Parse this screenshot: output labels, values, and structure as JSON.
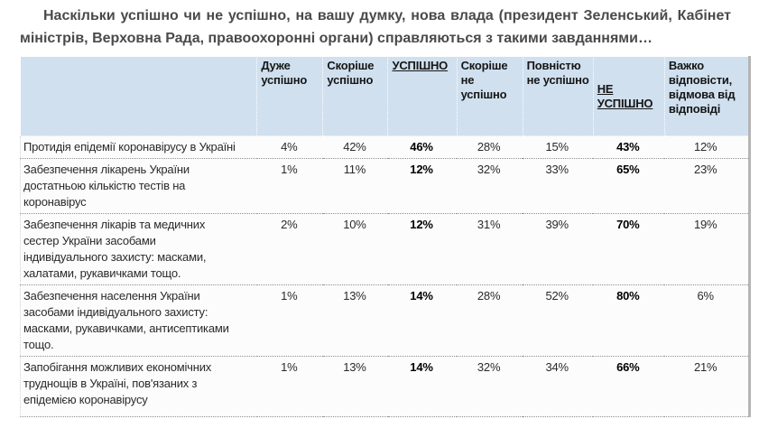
{
  "question": "Наскільки успішно чи не успішно, на вашу думку, нова влада (президент Зеленський, Кабінет міністрів, Верховна Рада, правоохоронні органи) справляються з такими завданнями…",
  "table": {
    "headers": [
      "",
      "Дуже успішно",
      "Скоріше успішно",
      "УСПІШНО",
      "Скоріше не успішно",
      "Повністю не успішно",
      "НЕ УСПІШНО",
      "Важко відповісти, відмова від відповіді"
    ],
    "rows": [
      {
        "label": "Протидія епідемії коронавірусу в Україні",
        "values": [
          "4%",
          "42%",
          "46%",
          "28%",
          "15%",
          "43%",
          "12%"
        ]
      },
      {
        "label": "Забезпечення лікарень України достатньою кількістю тестів на коронавірус",
        "values": [
          "1%",
          "11%",
          "12%",
          "32%",
          "33%",
          "65%",
          "23%"
        ]
      },
      {
        "label": "Забезпечення лікарів та медичних сестер України засобами індивідуального захисту: масками, халатами, рукавичками тощо.",
        "values": [
          "2%",
          "10%",
          "12%",
          "31%",
          "39%",
          "70%",
          "19%"
        ]
      },
      {
        "label": "Забезпечення населення України засобами індивідуального захисту: масками, рукавичками, антисептиками тощо.",
        "values": [
          "1%",
          "13%",
          "14%",
          "28%",
          "52%",
          "80%",
          "6%"
        ]
      },
      {
        "label": "Запобігання можливих економічних труднощів в Україні, пов'язаних з епідемією коронавірусу",
        "values": [
          "1%",
          "13%",
          "14%",
          "32%",
          "34%",
          "66%",
          "21%"
        ]
      }
    ]
  },
  "colors": {
    "header_bg": "#d0e0ef",
    "title_text": "#4a4a4a",
    "body_text": "#2a2a2a",
    "row_separator": "#8f8f8f",
    "table_edge_shadow": "#b5b5b5"
  },
  "chart_data": {
    "type": "table",
    "title": "Наскільки успішно чи не успішно, на вашу думку, нова влада (президент Зеленський, Кабінет міністрів, Верховна Рада, правоохоронні органи) справляються з такими завданнями…",
    "unit": "%",
    "categories": [
      "Протидія епідемії коронавірусу в Україні",
      "Забезпечення лікарень України достатньою кількістю тестів на коронавірус",
      "Забезпечення лікарів та медичних сестер України засобами індивідуального захисту: масками, халатами, рукавичками тощо.",
      "Забезпечення населення України засобами індивідуального захисту: масками, рукавичками, антисептиками тощо.",
      "Запобігання можливих економічних труднощів в Україні, пов'язаних з епідемією коронавірусу"
    ],
    "series": [
      {
        "name": "Дуже успішно",
        "values": [
          4,
          1,
          2,
          1,
          1
        ]
      },
      {
        "name": "Скоріше успішно",
        "values": [
          42,
          11,
          10,
          13,
          13
        ]
      },
      {
        "name": "УСПІШНО",
        "values": [
          46,
          12,
          12,
          14,
          14
        ]
      },
      {
        "name": "Скоріше не успішно",
        "values": [
          28,
          32,
          31,
          28,
          32
        ]
      },
      {
        "name": "Повністю не успішно",
        "values": [
          15,
          33,
          39,
          52,
          34
        ]
      },
      {
        "name": "НЕ УСПІШНО",
        "values": [
          43,
          65,
          70,
          80,
          66
        ]
      },
      {
        "name": "Важко відповісти, відмова від відповіді",
        "values": [
          12,
          23,
          19,
          6,
          21
        ]
      }
    ]
  }
}
